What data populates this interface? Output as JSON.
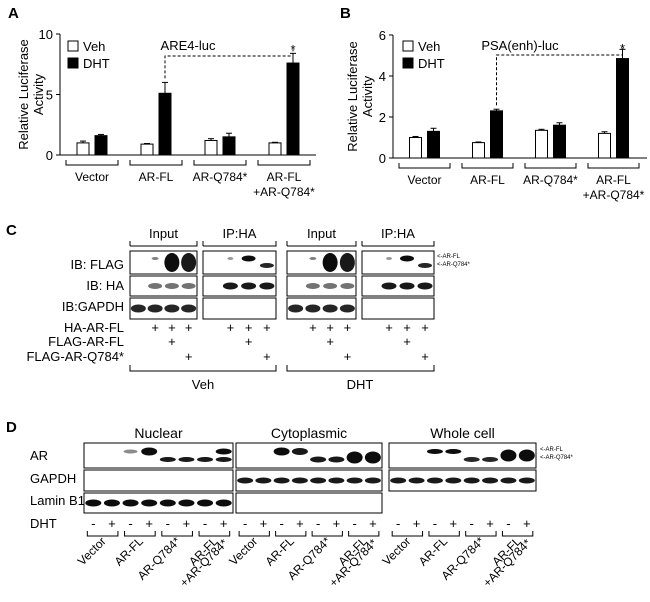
{
  "panels": {
    "a": {
      "letter": "A"
    },
    "b": {
      "letter": "B"
    },
    "c": {
      "letter": "C"
    },
    "d": {
      "letter": "D"
    }
  },
  "legend": {
    "veh": "Veh",
    "dht": "DHT"
  },
  "ylabel_line1": "Relative Luciferase",
  "ylabel_line2": "Activity",
  "group_labels": [
    "Vector",
    "AR-FL",
    "AR-Q784*",
    "AR-FL",
    "+AR-Q784*"
  ],
  "asterisk": "*",
  "chart_data": [
    {
      "type": "bar",
      "title": "ARE4-luc",
      "ylabel": "Relative Luciferase Activity",
      "ylim": [
        0,
        10
      ],
      "yticks": [
        0,
        5,
        10
      ],
      "categories": [
        "Vector",
        "AR-FL",
        "AR-Q784*",
        "AR-FL +AR-Q784*"
      ],
      "series": [
        {
          "name": "Veh",
          "values": [
            1.0,
            0.9,
            1.2,
            1.0
          ],
          "errors": [
            0.15,
            0.05,
            0.15,
            0.05
          ]
        },
        {
          "name": "DHT",
          "values": [
            1.6,
            5.1,
            1.5,
            7.6
          ],
          "errors": [
            0.1,
            0.9,
            0.3,
            0.8
          ]
        }
      ],
      "legend_position": "top-left"
    },
    {
      "type": "bar",
      "title": "PSA(enh)-luc",
      "ylabel": "Relative Luciferase Activity",
      "ylim": [
        0,
        6
      ],
      "yticks": [
        0,
        2,
        4,
        6
      ],
      "categories": [
        "Vector",
        "AR-FL",
        "AR-Q784*",
        "AR-FL +AR-Q784*"
      ],
      "series": [
        {
          "name": "Veh",
          "values": [
            1.0,
            0.75,
            1.35,
            1.2
          ],
          "errors": [
            0.05,
            0.03,
            0.05,
            0.08
          ]
        },
        {
          "name": "DHT",
          "values": [
            1.3,
            2.3,
            1.6,
            4.85
          ],
          "errors": [
            0.15,
            0.08,
            0.12,
            0.45
          ]
        }
      ],
      "legend_position": "top-left"
    }
  ],
  "blot_c": {
    "col_headers": {
      "input": "Input",
      "ip": "IP:HA"
    },
    "row_labels": [
      "IB: FLAG",
      "IB: HA",
      "IB:GAPDH"
    ],
    "band_labels": [
      "AR-FL",
      "AR-Q784*"
    ],
    "cond_labels": [
      "HA-AR-FL",
      "FLAG-AR-FL",
      "FLAG-AR-Q784*"
    ],
    "plus": "+",
    "group_veh": "Veh",
    "group_dht": "DHT"
  },
  "blot_d": {
    "col_headers": {
      "nuclear": "Nuclear",
      "cyto": "Cytoplasmic",
      "whole": "Whole cell"
    },
    "row_labels": [
      "AR",
      "GAPDH",
      "Lamin B1"
    ],
    "band_labels": [
      "AR-FL",
      "AR-Q784*"
    ],
    "dht_label": "DHT",
    "minus": "-",
    "plus": "+",
    "groups": [
      "Vector",
      "AR-FL",
      "AR-Q784*",
      "AR-FL",
      "+AR-Q784*"
    ]
  }
}
